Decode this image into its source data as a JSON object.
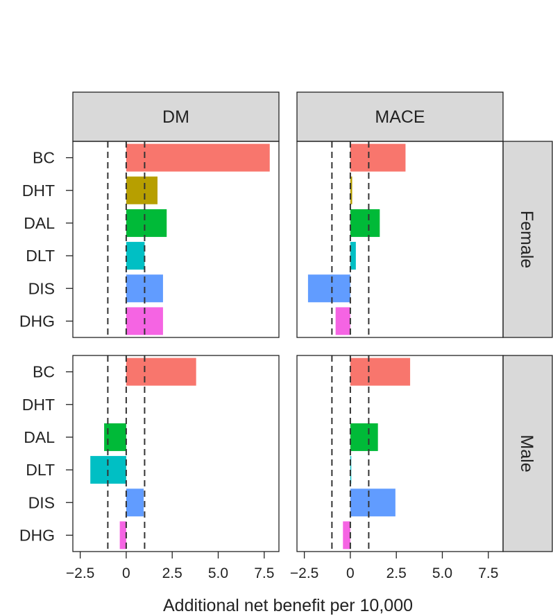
{
  "chart_data": {
    "type": "bar",
    "orientation": "horizontal",
    "xlabel": "Additional net benefit per 10,000",
    "xlim": [
      -2.9,
      8.3
    ],
    "xticks": [
      -2.5,
      0,
      2.5,
      5.0,
      7.5
    ],
    "xtick_labels": [
      "−2.5",
      "0",
      "2.5",
      "5.0",
      "7.5"
    ],
    "reference_lines": [
      -1,
      0,
      1
    ],
    "columns": [
      "DM",
      "MACE"
    ],
    "rows": [
      "Female",
      "Male"
    ],
    "categories": [
      "BC",
      "DHT",
      "DAL",
      "DLT",
      "DIS",
      "DHG"
    ],
    "colors": {
      "BC": "#F8766D",
      "DHT": "#B79F00",
      "DAL": "#00BA38",
      "DLT": "#00BFC4",
      "DIS": "#619CFF",
      "DHG": "#F564E3"
    },
    "panels": [
      {
        "column": "DM",
        "row": "Female",
        "values": [
          7.8,
          1.7,
          2.2,
          1.0,
          2.0,
          2.0
        ]
      },
      {
        "column": "MACE",
        "row": "Female",
        "values": [
          3.0,
          0.1,
          1.6,
          0.3,
          -2.3,
          -0.8
        ]
      },
      {
        "column": "DM",
        "row": "Male",
        "values": [
          3.8,
          0.0,
          -1.2,
          -1.95,
          0.95,
          -0.35
        ]
      },
      {
        "column": "MACE",
        "row": "Male",
        "values": [
          3.25,
          0.0,
          1.5,
          0.05,
          2.45,
          -0.4
        ]
      }
    ]
  }
}
